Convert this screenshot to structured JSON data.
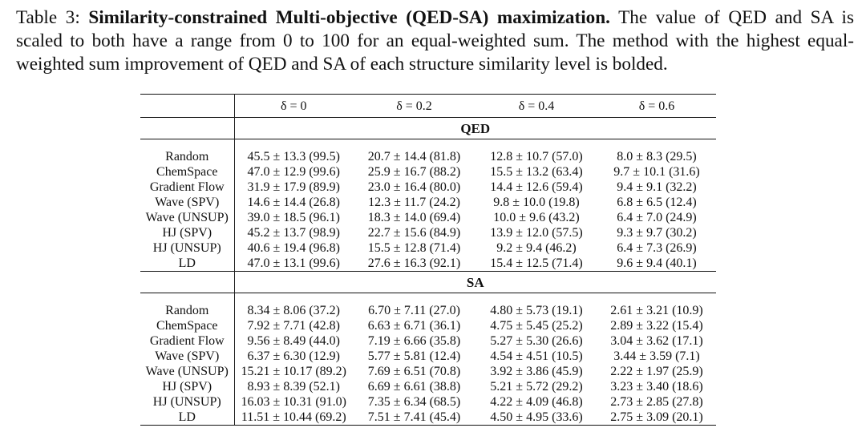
{
  "caption": {
    "label": "Table 3:",
    "title": "Similarity-constrained Multi-objective (QED-SA) maximization.",
    "body": "The value of QED and SA is scaled to both have a range from 0 to 100 for an equal-weighted sum. The method with the highest equal-weighted sum improvement of QED and SA of each structure similarity level is bolded."
  },
  "columns": [
    "δ = 0",
    "δ = 0.2",
    "δ = 0.4",
    "δ = 0.6"
  ],
  "sections": [
    {
      "title": "QED",
      "rows": [
        {
          "method": "Random",
          "cells": [
            {
              "text": "45.5 ± 13.3 (99.5)",
              "bold": false
            },
            {
              "text": "20.7 ± 14.4 (81.8)",
              "bold": false
            },
            {
              "text": "12.8 ± 10.7 (57.0)",
              "bold": false
            },
            {
              "text": "8.0 ± 8.3 (29.5)",
              "bold": false
            }
          ]
        },
        {
          "method": "ChemSpace",
          "cells": [
            {
              "text": "47.0 ± 12.9 (99.6)",
              "bold": false
            },
            {
              "text": "25.9 ± 16.7 (88.2)",
              "bold": false
            },
            {
              "text": "15.5 ± 13.2 (63.4)",
              "bold": true
            },
            {
              "text": "9.7 ± 10.1 (31.6)",
              "bold": true
            }
          ]
        },
        {
          "method": "Gradient Flow",
          "cells": [
            {
              "text": "31.9 ± 17.9 (89.9)",
              "bold": false
            },
            {
              "text": "23.0 ± 16.4 (80.0)",
              "bold": false
            },
            {
              "text": "14.4 ± 12.6 (59.4)",
              "bold": false
            },
            {
              "text": "9.4 ± 9.1 (32.2)",
              "bold": false
            }
          ]
        },
        {
          "method": "Wave (SPV)",
          "cells": [
            {
              "text": "14.6 ± 14.4 (26.8)",
              "bold": false
            },
            {
              "text": "12.3 ± 11.7 (24.2)",
              "bold": false
            },
            {
              "text": "9.8 ± 10.0 (19.8)",
              "bold": false
            },
            {
              "text": "6.8 ± 6.5 (12.4)",
              "bold": false
            }
          ]
        },
        {
          "method": "Wave (UNSUP)",
          "cells": [
            {
              "text": "39.0 ± 18.5 (96.1)",
              "bold": false
            },
            {
              "text": "18.3 ± 14.0 (69.4)",
              "bold": false
            },
            {
              "text": "10.0 ± 9.6 (43.2)",
              "bold": false
            },
            {
              "text": "6.4 ± 7.0 (24.9)",
              "bold": false
            }
          ]
        },
        {
          "method": "HJ (SPV)",
          "cells": [
            {
              "text": "45.2 ± 13.7 (98.9)",
              "bold": false
            },
            {
              "text": "22.7 ± 15.6 (84.9)",
              "bold": false
            },
            {
              "text": "13.9 ± 12.0 (57.5)",
              "bold": false
            },
            {
              "text": "9.3 ± 9.7 (30.2)",
              "bold": false
            }
          ]
        },
        {
          "method": "HJ (UNSUP)",
          "cells": [
            {
              "text": "40.6 ± 19.4 (96.8)",
              "bold": false
            },
            {
              "text": "15.5 ± 12.8 (71.4)",
              "bold": false
            },
            {
              "text": "9.2 ± 9.4 (46.2)",
              "bold": false
            },
            {
              "text": "6.4 ± 7.3 (26.9)",
              "bold": false
            }
          ]
        },
        {
          "method": "LD",
          "cells": [
            {
              "text": "47.0 ± 13.1 (99.6)",
              "bold": true
            },
            {
              "text": "27.6 ± 16.3 (92.1)",
              "bold": true
            },
            {
              "text": "15.4 ± 12.5 (71.4)",
              "bold": false
            },
            {
              "text": "9.6 ± 9.4 (40.1)",
              "bold": false
            }
          ]
        }
      ]
    },
    {
      "title": "SA",
      "rows": [
        {
          "method": "Random",
          "cells": [
            {
              "text": "8.34 ± 8.06 (37.2)",
              "bold": false
            },
            {
              "text": "6.70 ± 7.11 (27.0)",
              "bold": false
            },
            {
              "text": "4.80 ± 5.73 (19.1)",
              "bold": false
            },
            {
              "text": "2.61 ± 3.21 (10.9)",
              "bold": false
            }
          ]
        },
        {
          "method": "ChemSpace",
          "cells": [
            {
              "text": "7.92 ± 7.71 (42.8)",
              "bold": false
            },
            {
              "text": "6.63 ± 6.71 (36.1)",
              "bold": false
            },
            {
              "text": "4.75 ± 5.45 (25.2)",
              "bold": true
            },
            {
              "text": "2.89 ± 3.22 (15.4)",
              "bold": true
            }
          ]
        },
        {
          "method": "Gradient Flow",
          "cells": [
            {
              "text": "9.56 ± 8.49 (44.0)",
              "bold": false
            },
            {
              "text": "7.19 ± 6.66 (35.8)",
              "bold": false
            },
            {
              "text": "5.27 ± 5.30 (26.6)",
              "bold": false
            },
            {
              "text": "3.04 ± 3.62 (17.1)",
              "bold": false
            }
          ]
        },
        {
          "method": "Wave (SPV)",
          "cells": [
            {
              "text": "6.37 ± 6.30 (12.9)",
              "bold": false
            },
            {
              "text": "5.77 ± 5.81 (12.4)",
              "bold": false
            },
            {
              "text": "4.54 ± 4.51 (10.5)",
              "bold": false
            },
            {
              "text": "3.44 ± 3.59 (7.1)",
              "bold": false
            }
          ]
        },
        {
          "method": "Wave (UNSUP)",
          "cells": [
            {
              "text": "15.21 ± 10.17 (89.2)",
              "bold": false
            },
            {
              "text": "7.69 ± 6.51 (70.8)",
              "bold": false
            },
            {
              "text": "3.92 ± 3.86 (45.9)",
              "bold": false
            },
            {
              "text": "2.22 ± 1.97 (25.9)",
              "bold": false
            }
          ]
        },
        {
          "method": "HJ (SPV)",
          "cells": [
            {
              "text": "8.93 ± 8.39 (52.1)",
              "bold": false
            },
            {
              "text": "6.69 ± 6.61 (38.8)",
              "bold": false
            },
            {
              "text": "5.21 ± 5.72 (29.2)",
              "bold": false
            },
            {
              "text": "3.23 ± 3.40 (18.6)",
              "bold": false
            }
          ]
        },
        {
          "method": "HJ (UNSUP)",
          "cells": [
            {
              "text": "16.03 ± 10.31 (91.0)",
              "bold": false
            },
            {
              "text": "7.35 ± 6.34 (68.5)",
              "bold": false
            },
            {
              "text": "4.22 ± 4.09 (46.8)",
              "bold": false
            },
            {
              "text": "2.73 ± 2.85 (27.8)",
              "bold": false
            }
          ]
        },
        {
          "method": "LD",
          "cells": [
            {
              "text": "11.51 ± 10.44 (69.2)",
              "bold": true
            },
            {
              "text": "7.51 ± 7.41 (45.4)",
              "bold": true
            },
            {
              "text": "4.50 ± 4.95 (33.6)",
              "bold": false
            },
            {
              "text": "2.75 ± 3.09 (20.1)",
              "bold": false
            }
          ]
        }
      ]
    }
  ]
}
